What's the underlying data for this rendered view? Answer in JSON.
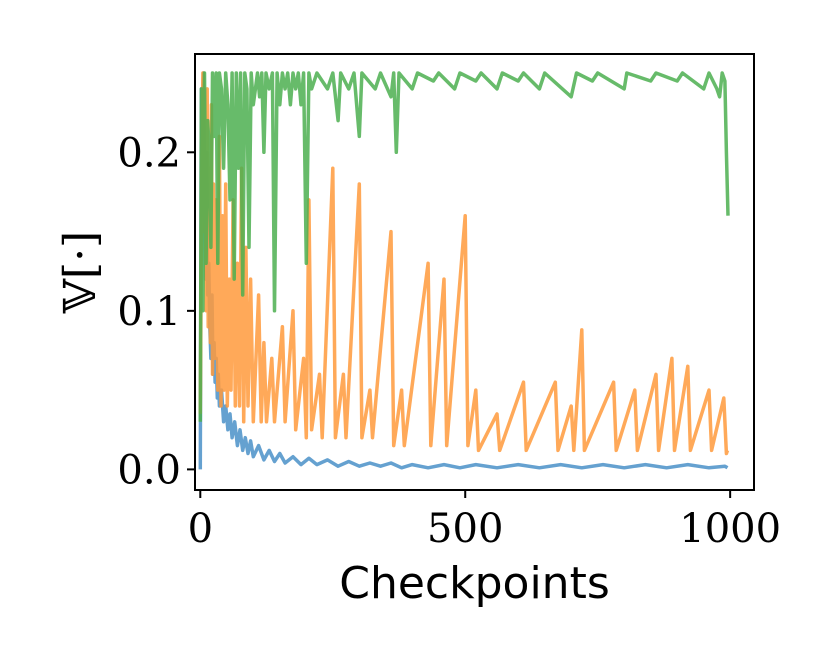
{
  "chart_data": {
    "type": "line",
    "title": "",
    "xlabel": "Checkpoints",
    "ylabel": "𝕍[·]",
    "xlim": [
      -10,
      1045
    ],
    "ylim": [
      -0.013,
      0.262
    ],
    "x_ticks": [
      0,
      500,
      1000
    ],
    "x_tick_labels": [
      "0",
      "500",
      "1000"
    ],
    "y_ticks": [
      0.0,
      0.1,
      0.2
    ],
    "y_tick_labels": [
      "0.0",
      "0.1",
      "0.2"
    ],
    "grid": false,
    "legend": "none",
    "series": [
      {
        "color": "#4a90c8",
        "points": [
          [
            0,
            0.0
          ],
          [
            2,
            0.24
          ],
          [
            4,
            0.22
          ],
          [
            6,
            0.25
          ],
          [
            8,
            0.17
          ],
          [
            10,
            0.12
          ],
          [
            12,
            0.2
          ],
          [
            14,
            0.11
          ],
          [
            16,
            0.13
          ],
          [
            18,
            0.09
          ],
          [
            20,
            0.07
          ],
          [
            22,
            0.11
          ],
          [
            24,
            0.06
          ],
          [
            26,
            0.08
          ],
          [
            28,
            0.055
          ],
          [
            30,
            0.07
          ],
          [
            32,
            0.045
          ],
          [
            34,
            0.06
          ],
          [
            36,
            0.04
          ],
          [
            40,
            0.05
          ],
          [
            44,
            0.03
          ],
          [
            48,
            0.04
          ],
          [
            52,
            0.025
          ],
          [
            56,
            0.035
          ],
          [
            60,
            0.02
          ],
          [
            65,
            0.03
          ],
          [
            70,
            0.015
          ],
          [
            75,
            0.025
          ],
          [
            80,
            0.012
          ],
          [
            85,
            0.02
          ],
          [
            90,
            0.01
          ],
          [
            95,
            0.018
          ],
          [
            100,
            0.008
          ],
          [
            110,
            0.015
          ],
          [
            120,
            0.006
          ],
          [
            130,
            0.012
          ],
          [
            140,
            0.005
          ],
          [
            150,
            0.01
          ],
          [
            160,
            0.004
          ],
          [
            175,
            0.008
          ],
          [
            190,
            0.003
          ],
          [
            205,
            0.007
          ],
          [
            220,
            0.003
          ],
          [
            240,
            0.006
          ],
          [
            260,
            0.002
          ],
          [
            280,
            0.005
          ],
          [
            300,
            0.002
          ],
          [
            320,
            0.004
          ],
          [
            340,
            0.002
          ],
          [
            360,
            0.004
          ],
          [
            380,
            0.001
          ],
          [
            400,
            0.003
          ],
          [
            430,
            0.001
          ],
          [
            460,
            0.003
          ],
          [
            490,
            0.001
          ],
          [
            520,
            0.003
          ],
          [
            560,
            0.001
          ],
          [
            600,
            0.003
          ],
          [
            640,
            0.001
          ],
          [
            680,
            0.003
          ],
          [
            720,
            0.001
          ],
          [
            760,
            0.003
          ],
          [
            800,
            0.001
          ],
          [
            840,
            0.003
          ],
          [
            880,
            0.001
          ],
          [
            920,
            0.003
          ],
          [
            960,
            0.001
          ],
          [
            990,
            0.002
          ],
          [
            995,
            0.001
          ]
        ]
      },
      {
        "color": "#ff9a3c",
        "points": [
          [
            0,
            0.035
          ],
          [
            3,
            0.2
          ],
          [
            5,
            0.25
          ],
          [
            7,
            0.15
          ],
          [
            9,
            0.22
          ],
          [
            11,
            0.1
          ],
          [
            13,
            0.24
          ],
          [
            15,
            0.09
          ],
          [
            17,
            0.19
          ],
          [
            19,
            0.08
          ],
          [
            21,
            0.23
          ],
          [
            23,
            0.06
          ],
          [
            25,
            0.18
          ],
          [
            27,
            0.07
          ],
          [
            30,
            0.17
          ],
          [
            33,
            0.05
          ],
          [
            36,
            0.21
          ],
          [
            39,
            0.04
          ],
          [
            42,
            0.16
          ],
          [
            45,
            0.05
          ],
          [
            48,
            0.18
          ],
          [
            51,
            0.04
          ],
          [
            55,
            0.12
          ],
          [
            58,
            0.05
          ],
          [
            62,
            0.17
          ],
          [
            66,
            0.04
          ],
          [
            70,
            0.13
          ],
          [
            74,
            0.04
          ],
          [
            78,
            0.19
          ],
          [
            82,
            0.03
          ],
          [
            86,
            0.14
          ],
          [
            90,
            0.04
          ],
          [
            95,
            0.12
          ],
          [
            100,
            0.03
          ],
          [
            110,
            0.11
          ],
          [
            115,
            0.03
          ],
          [
            120,
            0.08
          ],
          [
            125,
            0.03
          ],
          [
            135,
            0.07
          ],
          [
            140,
            0.03
          ],
          [
            155,
            0.09
          ],
          [
            160,
            0.03
          ],
          [
            175,
            0.1
          ],
          [
            180,
            0.025
          ],
          [
            195,
            0.07
          ],
          [
            200,
            0.02
          ],
          [
            205,
            0.17
          ],
          [
            210,
            0.025
          ],
          [
            225,
            0.06
          ],
          [
            230,
            0.02
          ],
          [
            250,
            0.19
          ],
          [
            255,
            0.02
          ],
          [
            270,
            0.06
          ],
          [
            275,
            0.02
          ],
          [
            300,
            0.18
          ],
          [
            305,
            0.02
          ],
          [
            320,
            0.05
          ],
          [
            325,
            0.02
          ],
          [
            360,
            0.15
          ],
          [
            365,
            0.015
          ],
          [
            380,
            0.05
          ],
          [
            385,
            0.015
          ],
          [
            430,
            0.13
          ],
          [
            435,
            0.015
          ],
          [
            460,
            0.12
          ],
          [
            465,
            0.015
          ],
          [
            500,
            0.16
          ],
          [
            505,
            0.015
          ],
          [
            520,
            0.05
          ],
          [
            525,
            0.012
          ],
          [
            560,
            0.035
          ],
          [
            565,
            0.012
          ],
          [
            610,
            0.055
          ],
          [
            615,
            0.012
          ],
          [
            670,
            0.055
          ],
          [
            675,
            0.012
          ],
          [
            700,
            0.04
          ],
          [
            705,
            0.012
          ],
          [
            720,
            0.088
          ],
          [
            725,
            0.012
          ],
          [
            780,
            0.055
          ],
          [
            785,
            0.012
          ],
          [
            820,
            0.05
          ],
          [
            825,
            0.012
          ],
          [
            860,
            0.06
          ],
          [
            865,
            0.012
          ],
          [
            890,
            0.07
          ],
          [
            895,
            0.012
          ],
          [
            920,
            0.065
          ],
          [
            925,
            0.012
          ],
          [
            960,
            0.05
          ],
          [
            965,
            0.012
          ],
          [
            988,
            0.045
          ],
          [
            993,
            0.01
          ],
          [
            995,
            0.012
          ]
        ]
      },
      {
        "color": "#4caf50",
        "points": [
          [
            0,
            0.03
          ],
          [
            2,
            0.24
          ],
          [
            5,
            0.1
          ],
          [
            8,
            0.25
          ],
          [
            11,
            0.13
          ],
          [
            14,
            0.22
          ],
          [
            17,
            0.2
          ],
          [
            20,
            0.14
          ],
          [
            23,
            0.25
          ],
          [
            26,
            0.21
          ],
          [
            30,
            0.25
          ],
          [
            33,
            0.13
          ],
          [
            36,
            0.25
          ],
          [
            40,
            0.24
          ],
          [
            44,
            0.19
          ],
          [
            48,
            0.25
          ],
          [
            52,
            0.23
          ],
          [
            56,
            0.17
          ],
          [
            60,
            0.25
          ],
          [
            64,
            0.12
          ],
          [
            68,
            0.25
          ],
          [
            72,
            0.19
          ],
          [
            76,
            0.25
          ],
          [
            80,
            0.11
          ],
          [
            84,
            0.25
          ],
          [
            88,
            0.24
          ],
          [
            92,
            0.14
          ],
          [
            96,
            0.25
          ],
          [
            100,
            0.23
          ],
          [
            104,
            0.24
          ],
          [
            108,
            0.25
          ],
          [
            112,
            0.235
          ],
          [
            116,
            0.25
          ],
          [
            120,
            0.2
          ],
          [
            124,
            0.25
          ],
          [
            130,
            0.24
          ],
          [
            136,
            0.25
          ],
          [
            140,
            0.1
          ],
          [
            145,
            0.25
          ],
          [
            150,
            0.23
          ],
          [
            155,
            0.25
          ],
          [
            160,
            0.24
          ],
          [
            165,
            0.25
          ],
          [
            170,
            0.23
          ],
          [
            175,
            0.25
          ],
          [
            180,
            0.24
          ],
          [
            185,
            0.25
          ],
          [
            190,
            0.23
          ],
          [
            195,
            0.25
          ],
          [
            200,
            0.13
          ],
          [
            205,
            0.25
          ],
          [
            210,
            0.24
          ],
          [
            220,
            0.25
          ],
          [
            240,
            0.24
          ],
          [
            250,
            0.25
          ],
          [
            260,
            0.22
          ],
          [
            265,
            0.25
          ],
          [
            280,
            0.24
          ],
          [
            290,
            0.25
          ],
          [
            300,
            0.21
          ],
          [
            305,
            0.25
          ],
          [
            330,
            0.24
          ],
          [
            340,
            0.25
          ],
          [
            360,
            0.235
          ],
          [
            365,
            0.25
          ],
          [
            370,
            0.2
          ],
          [
            375,
            0.25
          ],
          [
            400,
            0.24
          ],
          [
            410,
            0.25
          ],
          [
            440,
            0.245
          ],
          [
            450,
            0.25
          ],
          [
            480,
            0.24
          ],
          [
            490,
            0.25
          ],
          [
            520,
            0.245
          ],
          [
            530,
            0.25
          ],
          [
            560,
            0.24
          ],
          [
            570,
            0.25
          ],
          [
            600,
            0.245
          ],
          [
            610,
            0.25
          ],
          [
            640,
            0.24
          ],
          [
            650,
            0.25
          ],
          [
            700,
            0.235
          ],
          [
            710,
            0.25
          ],
          [
            740,
            0.245
          ],
          [
            750,
            0.25
          ],
          [
            800,
            0.24
          ],
          [
            805,
            0.25
          ],
          [
            850,
            0.245
          ],
          [
            860,
            0.25
          ],
          [
            900,
            0.245
          ],
          [
            910,
            0.25
          ],
          [
            950,
            0.24
          ],
          [
            960,
            0.25
          ],
          [
            975,
            0.24
          ],
          [
            980,
            0.235
          ],
          [
            985,
            0.25
          ],
          [
            990,
            0.245
          ],
          [
            993,
            0.2
          ],
          [
            996,
            0.16
          ]
        ]
      }
    ]
  }
}
